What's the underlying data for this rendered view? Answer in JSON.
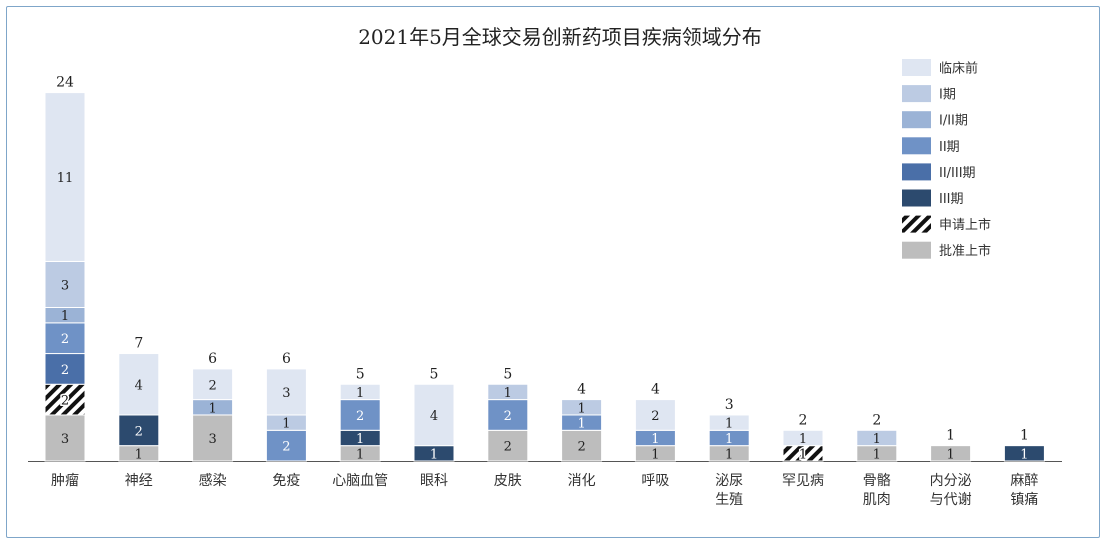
{
  "chart_data": {
    "type": "bar",
    "stacked": true,
    "title": "2021年5月全球交易创新药项目疾病领域分布",
    "categories": [
      [
        "肿瘤"
      ],
      [
        "神经"
      ],
      [
        "感染"
      ],
      [
        "免疫"
      ],
      [
        "心脑血管"
      ],
      [
        "眼科"
      ],
      [
        "皮肤"
      ],
      [
        "消化"
      ],
      [
        "呼吸"
      ],
      [
        "泌尿",
        "生殖"
      ],
      [
        "罕见病"
      ],
      [
        "骨骼",
        "肌肉"
      ],
      [
        "内分泌",
        "与代谢"
      ],
      [
        "麻醉",
        "镇痛"
      ]
    ],
    "totals": [
      24,
      7,
      6,
      6,
      5,
      5,
      5,
      4,
      4,
      3,
      2,
      2,
      1,
      1
    ],
    "series": [
      {
        "name": "批准上市",
        "color": "#bdbdbd",
        "values": [
          3,
          1,
          3,
          0,
          1,
          0,
          2,
          2,
          1,
          1,
          0,
          1,
          1,
          0
        ]
      },
      {
        "name": "申请上市",
        "color": "hatch",
        "values": [
          2,
          0,
          0,
          0,
          0,
          0,
          0,
          0,
          0,
          0,
          1,
          0,
          0,
          0
        ]
      },
      {
        "name": "III期",
        "color": "#2c4a6e",
        "values": [
          0,
          2,
          0,
          0,
          1,
          1,
          0,
          0,
          0,
          0,
          0,
          0,
          0,
          1
        ]
      },
      {
        "name": "II/III期",
        "color": "#4a6fa8",
        "values": [
          2,
          0,
          0,
          0,
          0,
          0,
          0,
          0,
          0,
          0,
          0,
          0,
          0,
          0
        ]
      },
      {
        "name": "II期",
        "color": "#6f92c6",
        "values": [
          2,
          0,
          0,
          2,
          2,
          0,
          2,
          1,
          1,
          1,
          0,
          0,
          0,
          0
        ]
      },
      {
        "name": "I/II期",
        "color": "#9bb3d6",
        "values": [
          1,
          0,
          1,
          0,
          0,
          0,
          0,
          0,
          0,
          0,
          0,
          0,
          0,
          0
        ]
      },
      {
        "name": "I期",
        "color": "#bccbe3",
        "values": [
          3,
          0,
          0,
          1,
          0,
          0,
          1,
          1,
          0,
          0,
          0,
          1,
          0,
          0
        ]
      },
      {
        "name": "临床前",
        "color": "#dfe6f2",
        "values": [
          11,
          4,
          2,
          3,
          1,
          4,
          0,
          0,
          2,
          1,
          1,
          0,
          0,
          0
        ]
      }
    ],
    "legend_order": [
      "临床前",
      "I期",
      "I/II期",
      "II期",
      "II/III期",
      "III期",
      "申请上市",
      "批准上市"
    ],
    "legend_position": "top-right",
    "grid": false
  }
}
